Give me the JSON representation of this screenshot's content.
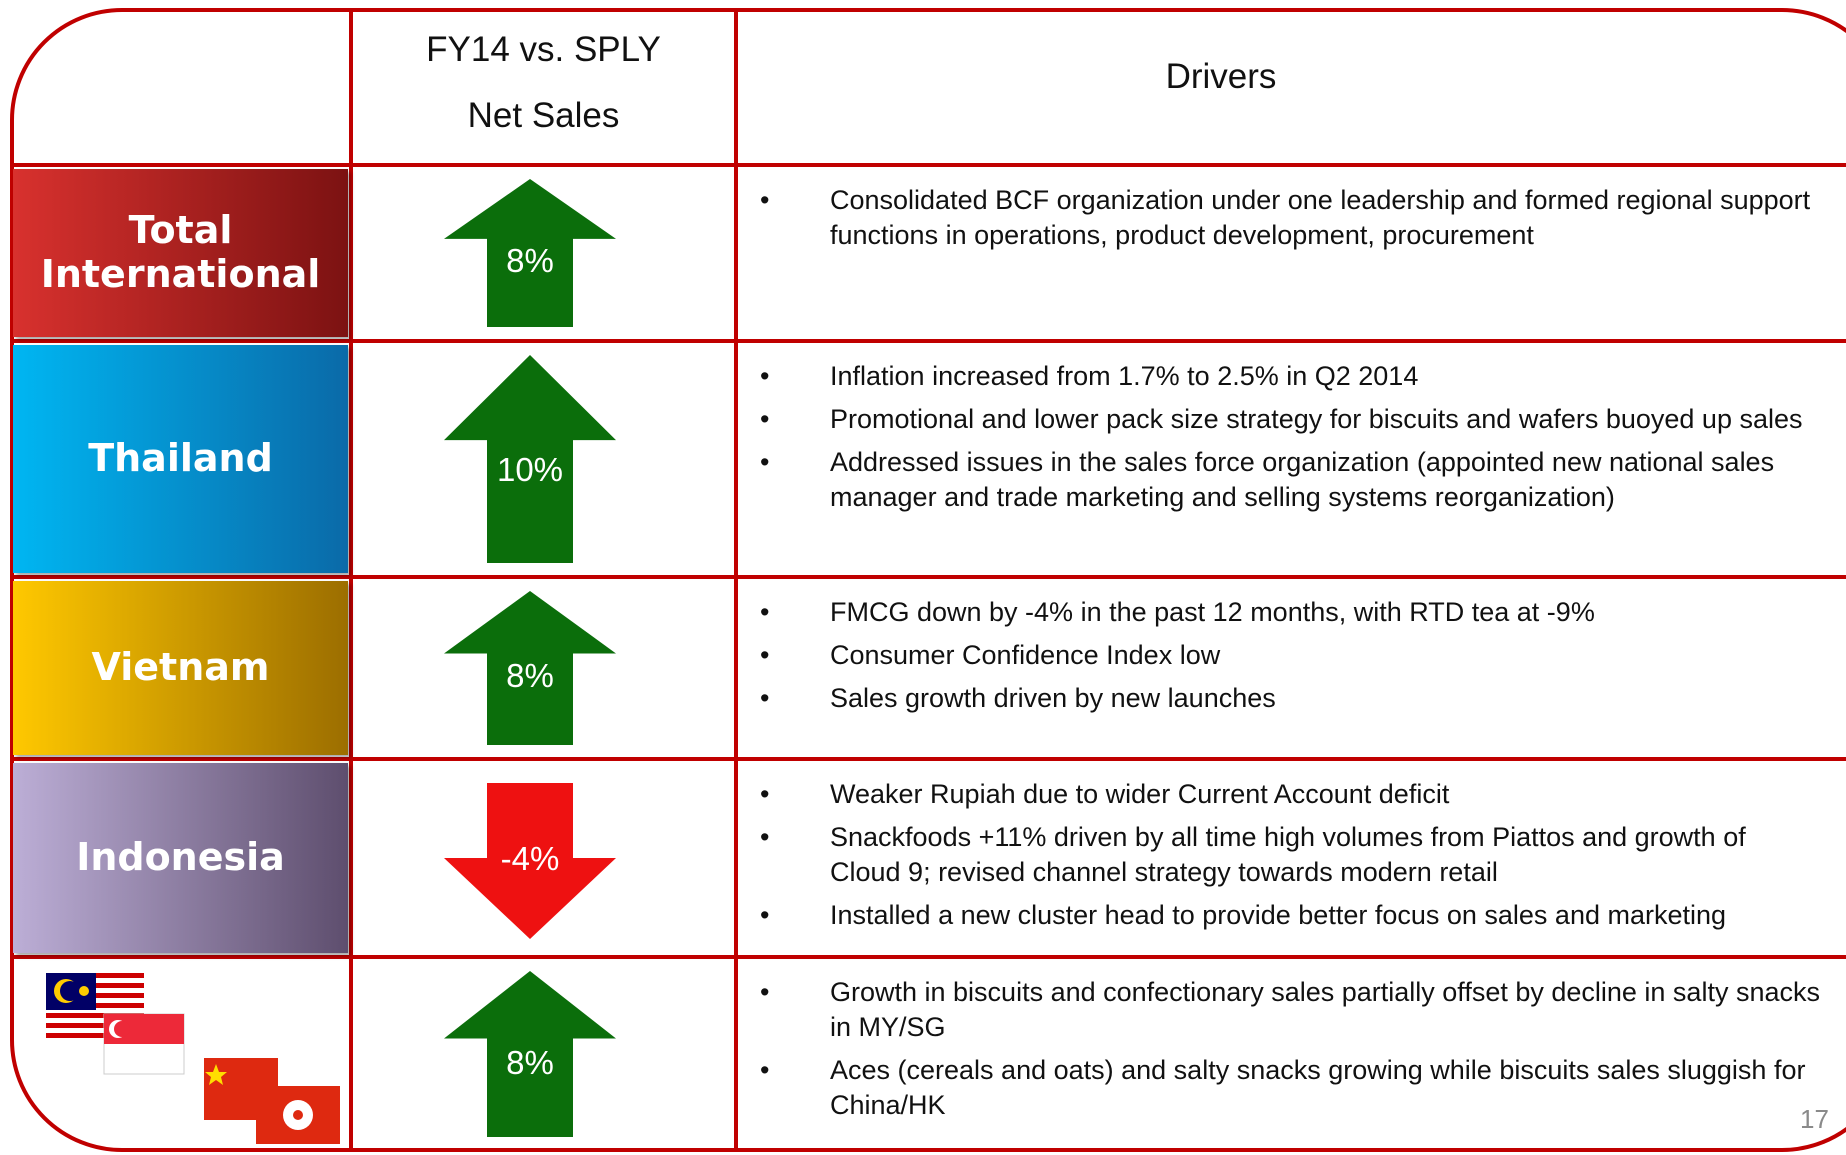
{
  "header": {
    "sales_lines": [
      "FY14 vs. SPLY",
      "Net Sales"
    ],
    "drivers": "Drivers"
  },
  "rows": [
    {
      "label": "Total International",
      "net_sales": "8%",
      "arrow": "up",
      "arrow_color": "#0b6e0b",
      "box_colors": [
        "#d8312e",
        "#7c1212"
      ],
      "drivers": [
        "Consolidated BCF organization under one leadership and formed regional support functions in operations, product development, procurement"
      ]
    },
    {
      "label": "Thailand",
      "net_sales": "10%",
      "arrow": "up",
      "arrow_color": "#0b6e0b",
      "box_colors": [
        "#00b6f2",
        "#0a6aa8"
      ],
      "drivers": [
        "Inflation increased from 1.7% to 2.5% in Q2 2014",
        "Promotional and lower pack size strategy for biscuits and wafers buoyed up sales",
        "Addressed issues in the sales force organization (appointed new national sales manager and trade marketing and selling systems reorganization)"
      ]
    },
    {
      "label": "Vietnam",
      "net_sales": "8%",
      "arrow": "up",
      "arrow_color": "#0b6e0b",
      "box_colors": [
        "#ffc800",
        "#9c6e00"
      ],
      "drivers": [
        "FMCG down by -4% in the past 12 months, with RTD tea at -9%",
        "Consumer Confidence Index low",
        "Sales growth driven by new launches"
      ]
    },
    {
      "label": "Indonesia",
      "net_sales": "-4%",
      "arrow": "down",
      "arrow_color": "#ee1111",
      "box_colors": [
        "#bcaed6",
        "#5e4e6e"
      ],
      "drivers": [
        "Weaker Rupiah due to wider Current Account deficit",
        "Snackfoods +11% driven by all time high volumes from Piattos and growth of Cloud 9; revised channel strategy towards modern retail",
        "Installed a new cluster head to provide better focus on sales and marketing"
      ]
    },
    {
      "label": null,
      "net_sales": "8%",
      "arrow": "up",
      "arrow_color": "#0b6e0b",
      "box_colors": null,
      "drivers": [
        "Growth in biscuits and confectionary sales partially offset by decline in salty snacks in MY/SG",
        "Aces (cereals and oats) and salty snacks growing while biscuits sales sluggish for China/HK"
      ]
    }
  ],
  "page_number": "17"
}
